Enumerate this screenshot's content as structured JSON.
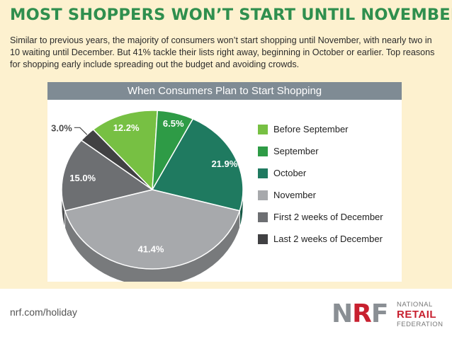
{
  "headline": "MOST SHOPPERS WON’T START UNTIL NOVEMBER",
  "subtitle": "Similar to previous years, the majority of consumers won’t start shopping until November, with nearly two in 10 waiting until December. But 41% tackle their lists right away, beginning in October or earlier. Top reasons for shopping early include spreading out the budget and avoiding crowds.",
  "footer": {
    "url": "nrf.com/holiday",
    "logo": {
      "letters": "NRF",
      "line1": "NATIONAL",
      "line2": "RETAIL",
      "line3": "FEDERATION"
    }
  },
  "chart_data": {
    "type": "pie",
    "title": "When Consumers Plan to Start Shopping",
    "legend_position": "right",
    "slices": [
      {
        "label": "Before September",
        "value": 12.2,
        "value_label": "12.2%",
        "color": "#77c043"
      },
      {
        "label": "September",
        "value": 6.5,
        "value_label": "6.5%",
        "color": "#2e9b46"
      },
      {
        "label": "October",
        "value": 21.9,
        "value_label": "21.9%",
        "color": "#1f7a60"
      },
      {
        "label": "November",
        "value": 41.4,
        "value_label": "41.4%",
        "color": "#a7a9ac"
      },
      {
        "label": "First 2 weeks of December",
        "value": 15.0,
        "value_label": "15.0%",
        "color": "#6d6f72"
      },
      {
        "label": "Last 2 weeks of December",
        "value": 3.0,
        "value_label": "3.0%",
        "color": "#414143"
      }
    ]
  }
}
